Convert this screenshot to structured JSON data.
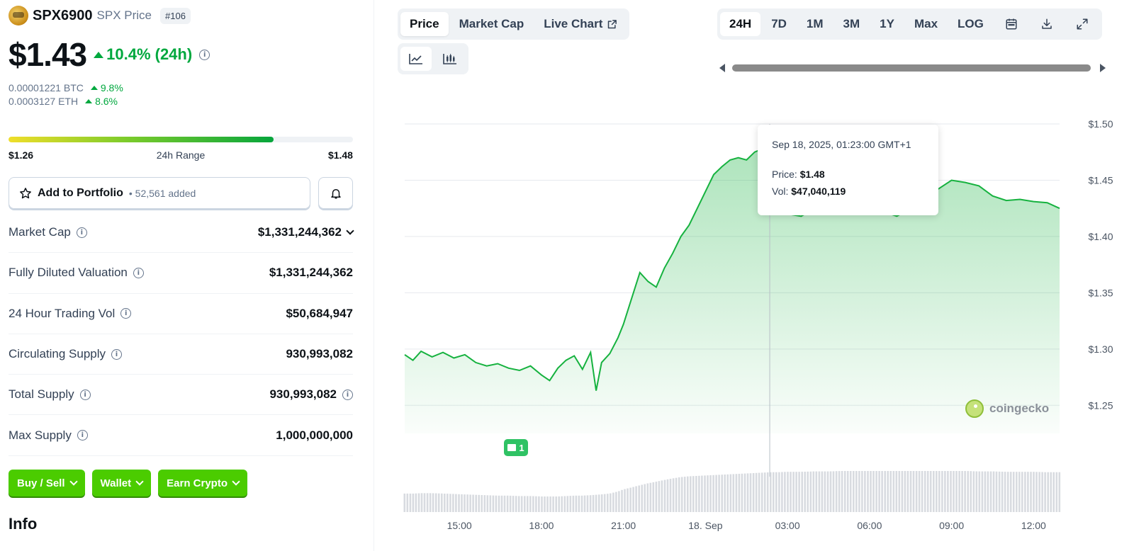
{
  "coin": {
    "name": "SPX6900",
    "subtitle": "SPX Price",
    "rank": "#106",
    "price": "$1.43",
    "change_24h": "10.4% (24h)",
    "btc_price": "0.00001221 BTC",
    "btc_change": "9.8%",
    "eth_price": "0.0003127 ETH",
    "eth_change": "8.6%"
  },
  "range": {
    "low": "$1.26",
    "label": "24h Range",
    "high": "$1.48",
    "fill_fraction": 0.77
  },
  "portfolio": {
    "label": "Add to Portfolio",
    "added": "52,561 added"
  },
  "stats": [
    {
      "label": "Market Cap",
      "value": "$1,331,244,362"
    },
    {
      "label": "Fully Diluted Valuation",
      "value": "$1,331,244,362"
    },
    {
      "label": "24 Hour Trading Vol",
      "value": "$50,684,947"
    },
    {
      "label": "Circulating Supply",
      "value": "930,993,082"
    },
    {
      "label": "Total Supply",
      "value": "930,993,082"
    },
    {
      "label": "Max Supply",
      "value": "1,000,000,000"
    }
  ],
  "actions": {
    "buy_sell": "Buy / Sell",
    "wallet": "Wallet",
    "earn": "Earn Crypto"
  },
  "info_heading": "Info",
  "chart_tabs": [
    "Price",
    "Market Cap",
    "Live Chart"
  ],
  "time_ranges": [
    "24H",
    "7D",
    "1M",
    "3M",
    "1Y",
    "Max",
    "LOG"
  ],
  "tooltip": {
    "date": "Sep 18, 2025, 01:23:00 GMT+1",
    "price_label": "Price:",
    "price_value": "$1.48",
    "vol_label": "Vol:",
    "vol_value": "$47,040,119"
  },
  "news_count": "1",
  "watermark": "coingecko",
  "colors": {
    "up_green": "#00a83e",
    "line_green": "#16b23f",
    "button_green": "#4bcc00"
  },
  "chart_data": {
    "type": "area",
    "y_ticks": [
      "$1.50",
      "$1.45",
      "$1.40",
      "$1.35",
      "$1.30",
      "$1.25"
    ],
    "x_ticks": [
      "15:00",
      "18:00",
      "21:00",
      "18. Sep",
      "03:00",
      "06:00",
      "09:00",
      "12:00"
    ],
    "ylim": [
      1.225,
      1.5
    ],
    "x_range_hours": [
      13.0,
      36.95
    ],
    "x": [
      13.0,
      13.3,
      13.6,
      14.0,
      14.4,
      14.8,
      15.2,
      15.6,
      16.0,
      16.4,
      16.8,
      17.2,
      17.6,
      18.0,
      18.3,
      18.6,
      18.9,
      19.2,
      19.5,
      19.8,
      20.0,
      20.2,
      20.5,
      20.8,
      21.0,
      21.3,
      21.6,
      21.9,
      22.2,
      22.5,
      22.8,
      23.1,
      23.4,
      23.7,
      24.0,
      24.3,
      24.6,
      24.9,
      25.2,
      25.5,
      25.8,
      26.1,
      26.4,
      26.7,
      27.0,
      27.5,
      28.0,
      28.5,
      29.0,
      29.5,
      30.0,
      30.5,
      31.0,
      31.5,
      32.0,
      32.5,
      33.0,
      33.5,
      34.0,
      34.5,
      35.0,
      35.5,
      36.0,
      36.5,
      36.95
    ],
    "price": [
      1.295,
      1.29,
      1.298,
      1.293,
      1.297,
      1.292,
      1.295,
      1.288,
      1.285,
      1.287,
      1.283,
      1.281,
      1.285,
      1.277,
      1.272,
      1.283,
      1.29,
      1.294,
      1.282,
      1.297,
      1.263,
      1.288,
      1.296,
      1.31,
      1.322,
      1.345,
      1.368,
      1.36,
      1.355,
      1.372,
      1.385,
      1.4,
      1.41,
      1.425,
      1.44,
      1.455,
      1.462,
      1.468,
      1.47,
      1.468,
      1.475,
      1.478,
      1.455,
      1.435,
      1.42,
      1.418,
      1.425,
      1.43,
      1.438,
      1.44,
      1.445,
      1.422,
      1.418,
      1.425,
      1.428,
      1.442,
      1.45,
      1.448,
      1.445,
      1.436,
      1.432,
      1.433,
      1.431,
      1.43,
      1.425
    ],
    "volume_relative": [
      0.45,
      0.45,
      0.46,
      0.46,
      0.45,
      0.44,
      0.43,
      0.42,
      0.41,
      0.4,
      0.4,
      0.39,
      0.39,
      0.38,
      0.38,
      0.38,
      0.39,
      0.4,
      0.4,
      0.41,
      0.42,
      0.43,
      0.45,
      0.5,
      0.55,
      0.6,
      0.65,
      0.7,
      0.74,
      0.78,
      0.82,
      0.85,
      0.87,
      0.88,
      0.89,
      0.9,
      0.91,
      0.92,
      0.93,
      0.94,
      0.95,
      0.96,
      0.97,
      0.97,
      0.98,
      0.98,
      0.99,
      0.99,
      1.0,
      1.0,
      1.0,
      1.0,
      1.0,
      1.0,
      1.0,
      1.0,
      1.0,
      1.0,
      0.99,
      0.99,
      0.98,
      0.98,
      0.98,
      0.97,
      0.97
    ],
    "crosshair_x": 26.35,
    "grid": true
  }
}
